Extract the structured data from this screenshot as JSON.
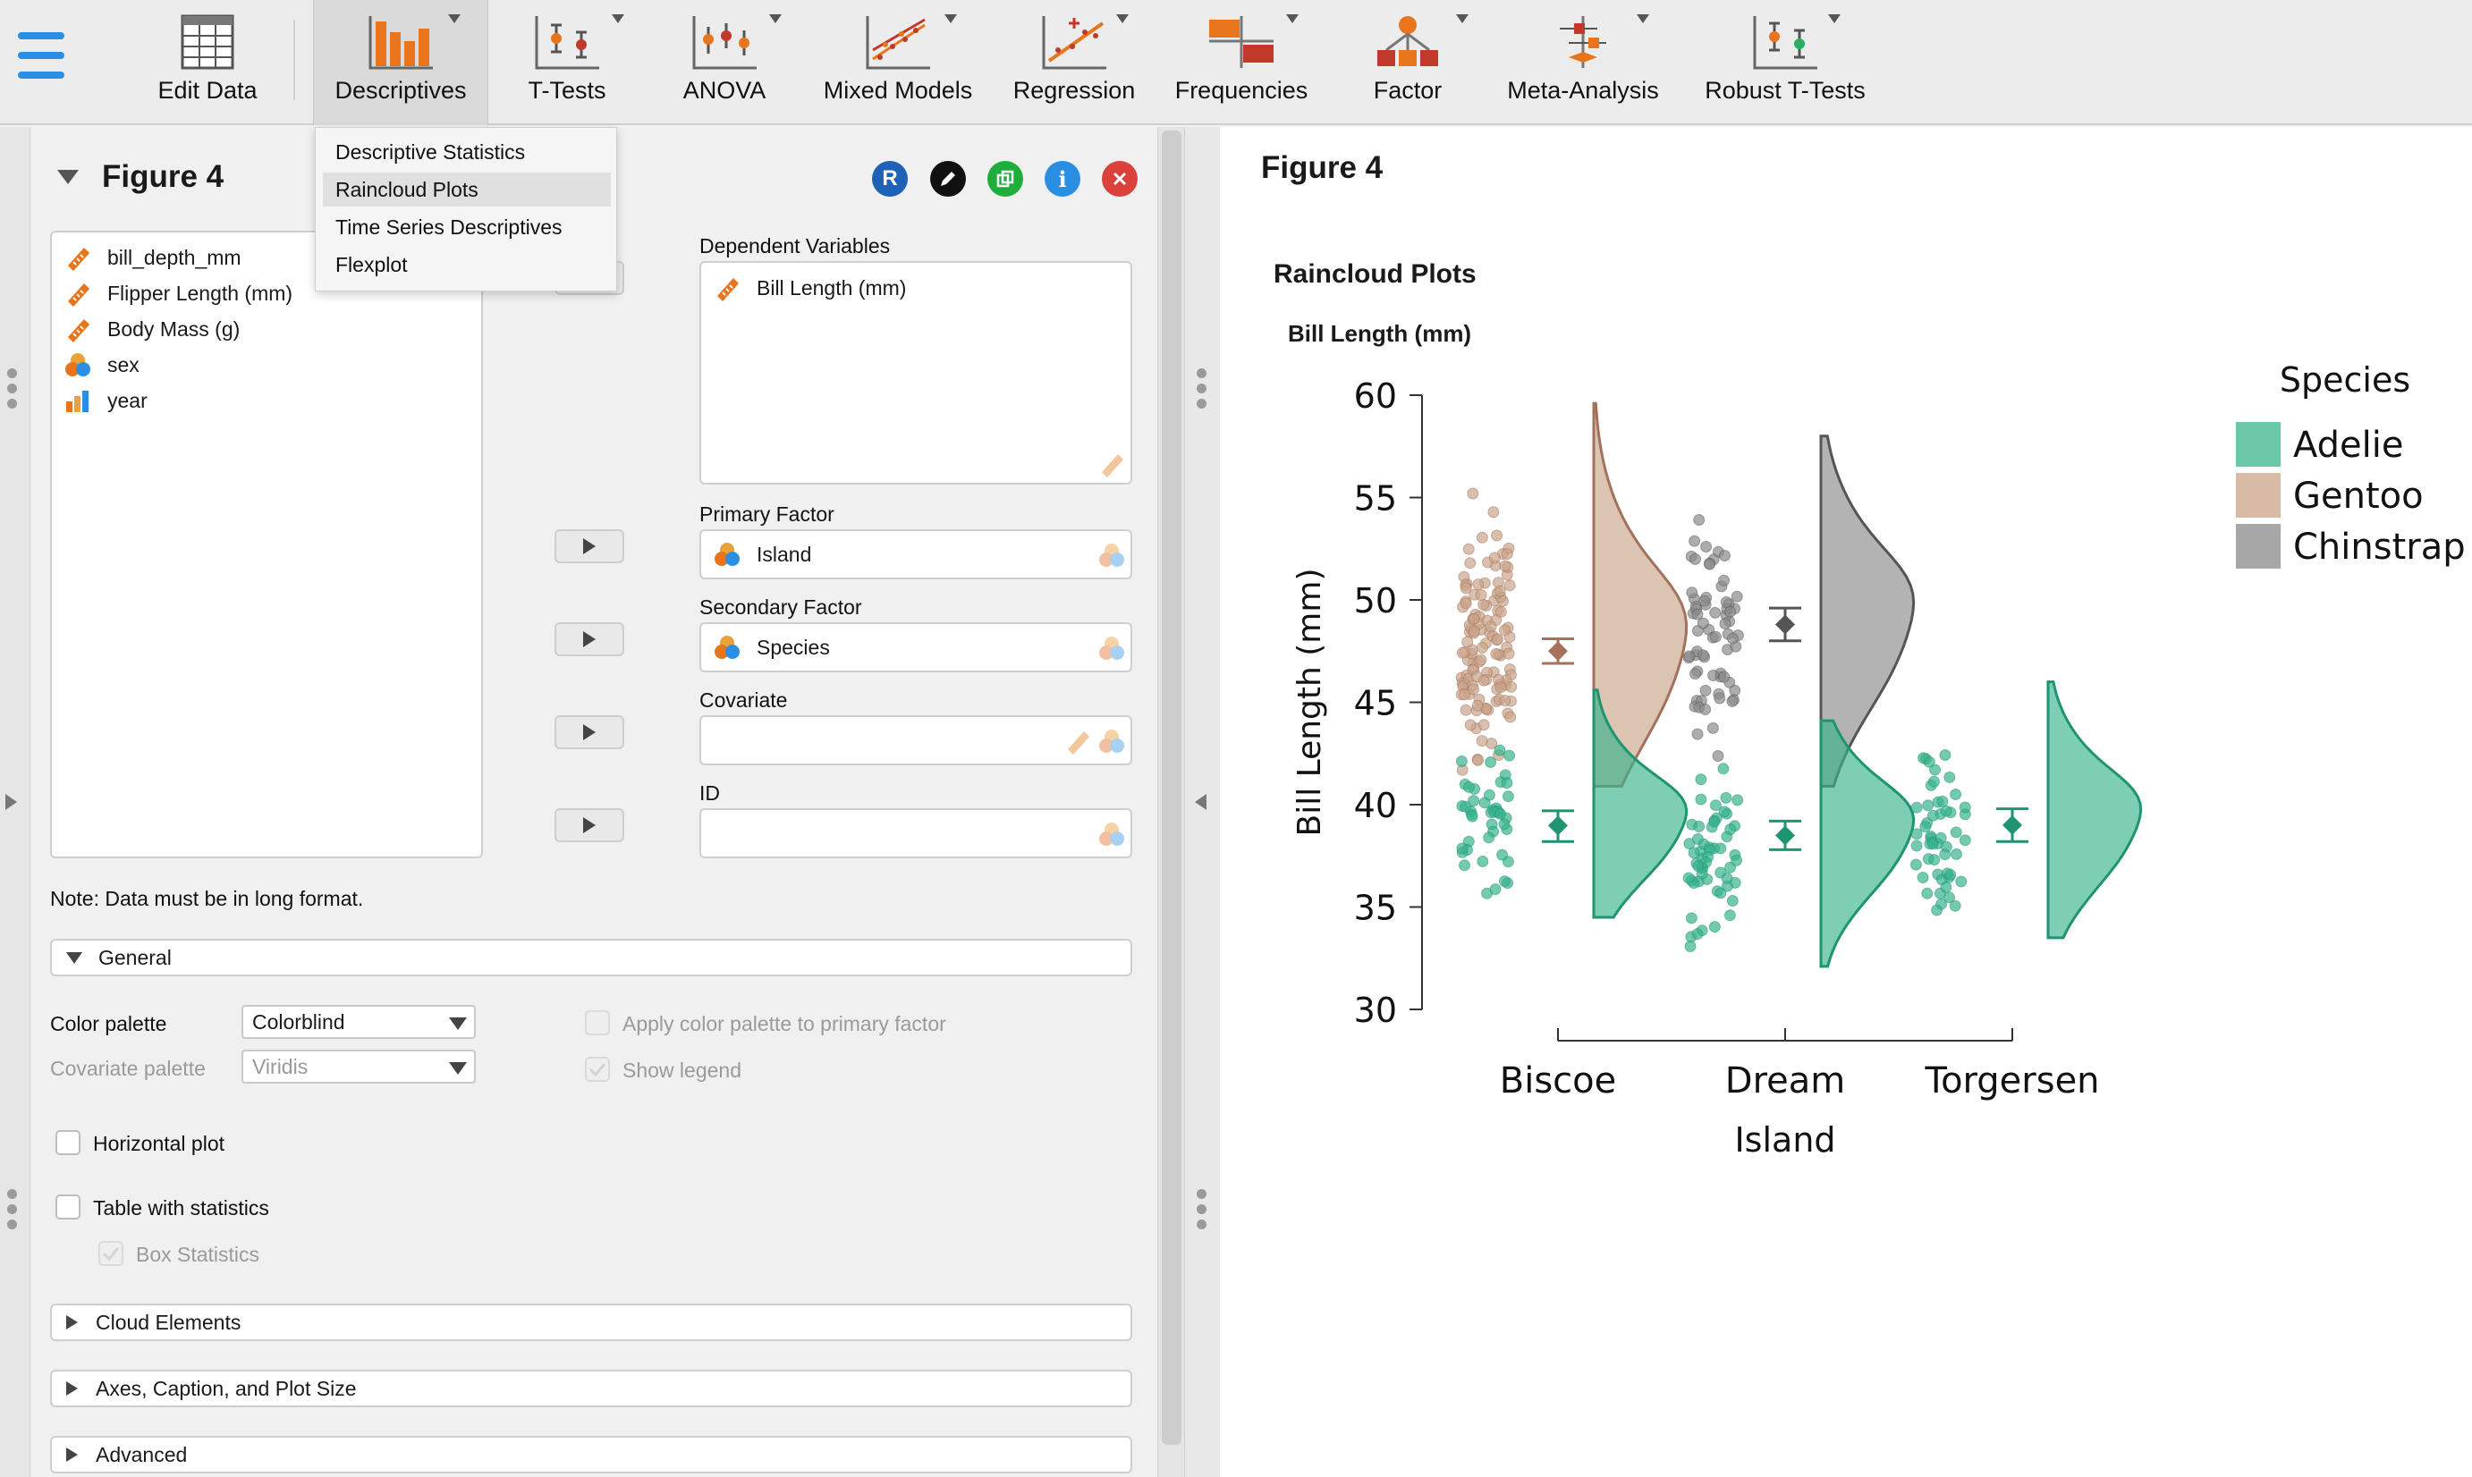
{
  "toolbar": {
    "edit_data": "Edit Data",
    "items": [
      {
        "label": "Descriptives",
        "icon": "descriptives-icon"
      },
      {
        "label": "T-Tests",
        "icon": "ttests-icon"
      },
      {
        "label": "ANOVA",
        "icon": "anova-icon"
      },
      {
        "label": "Mixed Models",
        "icon": "mixed-models-icon"
      },
      {
        "label": "Regression",
        "icon": "regression-icon"
      },
      {
        "label": "Frequencies",
        "icon": "frequencies-icon"
      },
      {
        "label": "Factor",
        "icon": "factor-icon"
      },
      {
        "label": "Meta-Analysis",
        "icon": "meta-analysis-icon"
      },
      {
        "label": "Robust T-Tests",
        "icon": "robust-ttests-icon"
      }
    ]
  },
  "menu": {
    "items": [
      "Descriptive Statistics",
      "Raincloud Plots",
      "Time Series Descriptives",
      "Flexplot"
    ],
    "selected": "Raincloud Plots"
  },
  "options": {
    "title": "Figure 4",
    "header_icons": [
      "R",
      "pencil",
      "copy",
      "i",
      "x"
    ],
    "variables": [
      {
        "name": "bill_depth_mm",
        "type": "scale"
      },
      {
        "name": "Flipper Length (mm)",
        "type": "scale"
      },
      {
        "name": "Body Mass (g)",
        "type": "scale"
      },
      {
        "name": "sex",
        "type": "nominal"
      },
      {
        "name": "year",
        "type": "ordinal"
      }
    ],
    "dependent_label": "Dependent Variables",
    "dependent_value": "Bill Length (mm)",
    "primary_label": "Primary Factor",
    "primary_value": "Island",
    "secondary_label": "Secondary Factor",
    "secondary_value": "Species",
    "covariate_label": "Covariate",
    "id_label": "ID",
    "note": "Note: Data must be in long format.",
    "general_label": "General",
    "color_palette_label": "Color palette",
    "color_palette_value": "Colorblind",
    "covariate_palette_label": "Covariate palette",
    "covariate_palette_value": "Viridis",
    "apply_palette_label": "Apply color palette to primary factor",
    "show_legend_label": "Show legend",
    "horizontal_label": "Horizontal plot",
    "table_label": "Table with statistics",
    "box_stats_label": "Box Statistics",
    "cloud_label": "Cloud Elements",
    "axes_label": "Axes, Caption, and Plot Size",
    "advanced_label": "Advanced"
  },
  "results": {
    "figure_title": "Figure 4",
    "analysis_title": "Raincloud Plots",
    "plot_title": "Bill Length (mm)"
  },
  "colors": {
    "accent": "#2a8fe3",
    "adelie": "#38b48b",
    "gentoo": "#c9a48a",
    "chinstrap": "#8a8a8a"
  },
  "chart_data": {
    "type": "raincloud",
    "title": "Bill Length (mm)",
    "xlabel": "Island",
    "ylabel": "Bill Length (mm)",
    "categories": [
      "Biscoe",
      "Dream",
      "Torgersen"
    ],
    "ylim": [
      30,
      60
    ],
    "yticks": [
      30,
      35,
      40,
      45,
      50,
      55,
      60
    ],
    "legend": {
      "title": "Species",
      "entries": [
        "Adelie",
        "Gentoo",
        "Chinstrap"
      ],
      "position": "right"
    },
    "series": [
      {
        "name": "Adelie",
        "groups": [
          {
            "island": "Biscoe",
            "mean": 38.98,
            "ci": [
              38.2,
              39.7
            ],
            "range": [
              34.5,
              45.6
            ]
          },
          {
            "island": "Dream",
            "mean": 38.5,
            "ci": [
              37.8,
              39.2
            ],
            "range": [
              32.1,
              44.1
            ]
          },
          {
            "island": "Torgersen",
            "mean": 39.0,
            "ci": [
              38.2,
              39.8
            ],
            "range": [
              33.5,
              46.0
            ]
          }
        ]
      },
      {
        "name": "Gentoo",
        "groups": [
          {
            "island": "Biscoe",
            "mean": 47.5,
            "ci": [
              46.9,
              48.1
            ],
            "range": [
              40.9,
              59.6
            ]
          }
        ]
      },
      {
        "name": "Chinstrap",
        "groups": [
          {
            "island": "Dream",
            "mean": 48.8,
            "ci": [
              48.0,
              49.6
            ],
            "range": [
              40.9,
              58.0
            ]
          }
        ]
      }
    ]
  }
}
